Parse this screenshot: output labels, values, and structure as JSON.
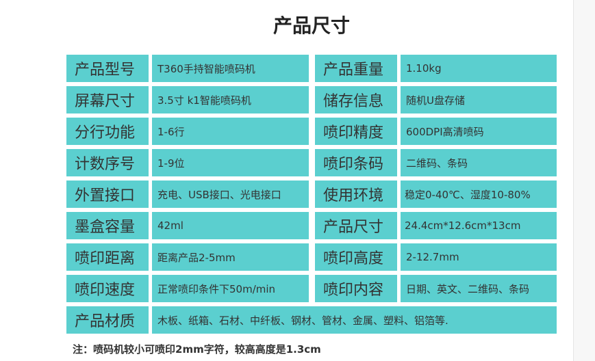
{
  "title": "产品尺寸",
  "rows": [
    {
      "l1": "产品型号",
      "v1": "T360手持智能喷码机",
      "l2": "产品重量",
      "v2": "1.10kg"
    },
    {
      "l1": "屏幕尺寸",
      "v1": "3.5寸    k1智能喷码机",
      "l2": "储存信息",
      "v2": "随机U盘存储"
    },
    {
      "l1": "分行功能",
      "v1": "1-6行",
      "l2": "喷印精度",
      "v2": "600DPI高清喷码"
    },
    {
      "l1": "计数序号",
      "v1": "1-9位",
      "l2": "喷印条码",
      "v2": "二维码、条码"
    },
    {
      "l1": "外置接口",
      "v1": "充电、USB接口、光电接口",
      "l2": "使用环境",
      "v2": "稳定0-40℃、湿度10-80%"
    },
    {
      "l1": "墨盒容量",
      "v1": "42ml",
      "l2": "产品尺寸",
      "v2": "24.4cm*12.6cm*13cm"
    },
    {
      "l1": "喷印距离",
      "v1": "距离产品2-5mm",
      "l2": "喷印高度",
      "v2": "2-12.7mm"
    },
    {
      "l1": "喷印速度",
      "v1": "正常喷印条件下50m/min",
      "l2": "喷印内容",
      "v2": "日期、英文、二维码、条码"
    }
  ],
  "material": {
    "label": "产品材质",
    "value": "木板、纸箱、石材、中纤板、钢材、管材、金属、塑料、铝箔等."
  },
  "note": "注：喷码机较小可喷印2mm字符，较高高度是1.3cm",
  "colors": {
    "cell": "#5bcfcf",
    "text": "#333333"
  }
}
